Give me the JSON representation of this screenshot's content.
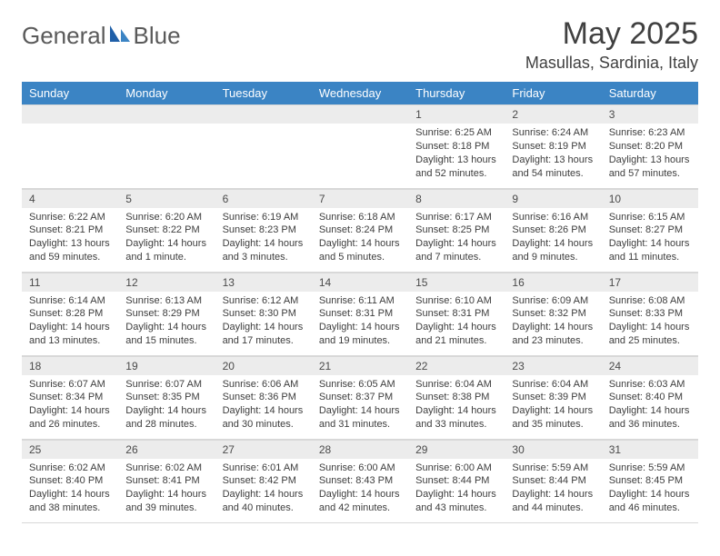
{
  "brand": {
    "word1": "General",
    "word2": "Blue"
  },
  "title": "May 2025",
  "location": "Masullas, Sardinia, Italy",
  "colors": {
    "header_bg": "#3b84c4",
    "header_text": "#ffffff",
    "daynum_bg": "#ececec",
    "body_text": "#3d3d3d",
    "rule": "#d8d8d8",
    "logo_gray": "#5a5a5a",
    "logo_blue": "#2f79c2"
  },
  "typography": {
    "title_fontsize": 34,
    "location_fontsize": 18,
    "th_fontsize": 13,
    "daynum_fontsize": 12,
    "body_fontsize": 11
  },
  "dayNames": [
    "Sunday",
    "Monday",
    "Tuesday",
    "Wednesday",
    "Thursday",
    "Friday",
    "Saturday"
  ],
  "weeks": [
    [
      null,
      null,
      null,
      null,
      {
        "n": "1",
        "sr": "Sunrise: 6:25 AM",
        "ss": "Sunset: 8:18 PM",
        "dl": "Daylight: 13 hours and 52 minutes."
      },
      {
        "n": "2",
        "sr": "Sunrise: 6:24 AM",
        "ss": "Sunset: 8:19 PM",
        "dl": "Daylight: 13 hours and 54 minutes."
      },
      {
        "n": "3",
        "sr": "Sunrise: 6:23 AM",
        "ss": "Sunset: 8:20 PM",
        "dl": "Daylight: 13 hours and 57 minutes."
      }
    ],
    [
      {
        "n": "4",
        "sr": "Sunrise: 6:22 AM",
        "ss": "Sunset: 8:21 PM",
        "dl": "Daylight: 13 hours and 59 minutes."
      },
      {
        "n": "5",
        "sr": "Sunrise: 6:20 AM",
        "ss": "Sunset: 8:22 PM",
        "dl": "Daylight: 14 hours and 1 minute."
      },
      {
        "n": "6",
        "sr": "Sunrise: 6:19 AM",
        "ss": "Sunset: 8:23 PM",
        "dl": "Daylight: 14 hours and 3 minutes."
      },
      {
        "n": "7",
        "sr": "Sunrise: 6:18 AM",
        "ss": "Sunset: 8:24 PM",
        "dl": "Daylight: 14 hours and 5 minutes."
      },
      {
        "n": "8",
        "sr": "Sunrise: 6:17 AM",
        "ss": "Sunset: 8:25 PM",
        "dl": "Daylight: 14 hours and 7 minutes."
      },
      {
        "n": "9",
        "sr": "Sunrise: 6:16 AM",
        "ss": "Sunset: 8:26 PM",
        "dl": "Daylight: 14 hours and 9 minutes."
      },
      {
        "n": "10",
        "sr": "Sunrise: 6:15 AM",
        "ss": "Sunset: 8:27 PM",
        "dl": "Daylight: 14 hours and 11 minutes."
      }
    ],
    [
      {
        "n": "11",
        "sr": "Sunrise: 6:14 AM",
        "ss": "Sunset: 8:28 PM",
        "dl": "Daylight: 14 hours and 13 minutes."
      },
      {
        "n": "12",
        "sr": "Sunrise: 6:13 AM",
        "ss": "Sunset: 8:29 PM",
        "dl": "Daylight: 14 hours and 15 minutes."
      },
      {
        "n": "13",
        "sr": "Sunrise: 6:12 AM",
        "ss": "Sunset: 8:30 PM",
        "dl": "Daylight: 14 hours and 17 minutes."
      },
      {
        "n": "14",
        "sr": "Sunrise: 6:11 AM",
        "ss": "Sunset: 8:31 PM",
        "dl": "Daylight: 14 hours and 19 minutes."
      },
      {
        "n": "15",
        "sr": "Sunrise: 6:10 AM",
        "ss": "Sunset: 8:31 PM",
        "dl": "Daylight: 14 hours and 21 minutes."
      },
      {
        "n": "16",
        "sr": "Sunrise: 6:09 AM",
        "ss": "Sunset: 8:32 PM",
        "dl": "Daylight: 14 hours and 23 minutes."
      },
      {
        "n": "17",
        "sr": "Sunrise: 6:08 AM",
        "ss": "Sunset: 8:33 PM",
        "dl": "Daylight: 14 hours and 25 minutes."
      }
    ],
    [
      {
        "n": "18",
        "sr": "Sunrise: 6:07 AM",
        "ss": "Sunset: 8:34 PM",
        "dl": "Daylight: 14 hours and 26 minutes."
      },
      {
        "n": "19",
        "sr": "Sunrise: 6:07 AM",
        "ss": "Sunset: 8:35 PM",
        "dl": "Daylight: 14 hours and 28 minutes."
      },
      {
        "n": "20",
        "sr": "Sunrise: 6:06 AM",
        "ss": "Sunset: 8:36 PM",
        "dl": "Daylight: 14 hours and 30 minutes."
      },
      {
        "n": "21",
        "sr": "Sunrise: 6:05 AM",
        "ss": "Sunset: 8:37 PM",
        "dl": "Daylight: 14 hours and 31 minutes."
      },
      {
        "n": "22",
        "sr": "Sunrise: 6:04 AM",
        "ss": "Sunset: 8:38 PM",
        "dl": "Daylight: 14 hours and 33 minutes."
      },
      {
        "n": "23",
        "sr": "Sunrise: 6:04 AM",
        "ss": "Sunset: 8:39 PM",
        "dl": "Daylight: 14 hours and 35 minutes."
      },
      {
        "n": "24",
        "sr": "Sunrise: 6:03 AM",
        "ss": "Sunset: 8:40 PM",
        "dl": "Daylight: 14 hours and 36 minutes."
      }
    ],
    [
      {
        "n": "25",
        "sr": "Sunrise: 6:02 AM",
        "ss": "Sunset: 8:40 PM",
        "dl": "Daylight: 14 hours and 38 minutes."
      },
      {
        "n": "26",
        "sr": "Sunrise: 6:02 AM",
        "ss": "Sunset: 8:41 PM",
        "dl": "Daylight: 14 hours and 39 minutes."
      },
      {
        "n": "27",
        "sr": "Sunrise: 6:01 AM",
        "ss": "Sunset: 8:42 PM",
        "dl": "Daylight: 14 hours and 40 minutes."
      },
      {
        "n": "28",
        "sr": "Sunrise: 6:00 AM",
        "ss": "Sunset: 8:43 PM",
        "dl": "Daylight: 14 hours and 42 minutes."
      },
      {
        "n": "29",
        "sr": "Sunrise: 6:00 AM",
        "ss": "Sunset: 8:44 PM",
        "dl": "Daylight: 14 hours and 43 minutes."
      },
      {
        "n": "30",
        "sr": "Sunrise: 5:59 AM",
        "ss": "Sunset: 8:44 PM",
        "dl": "Daylight: 14 hours and 44 minutes."
      },
      {
        "n": "31",
        "sr": "Sunrise: 5:59 AM",
        "ss": "Sunset: 8:45 PM",
        "dl": "Daylight: 14 hours and 46 minutes."
      }
    ]
  ]
}
